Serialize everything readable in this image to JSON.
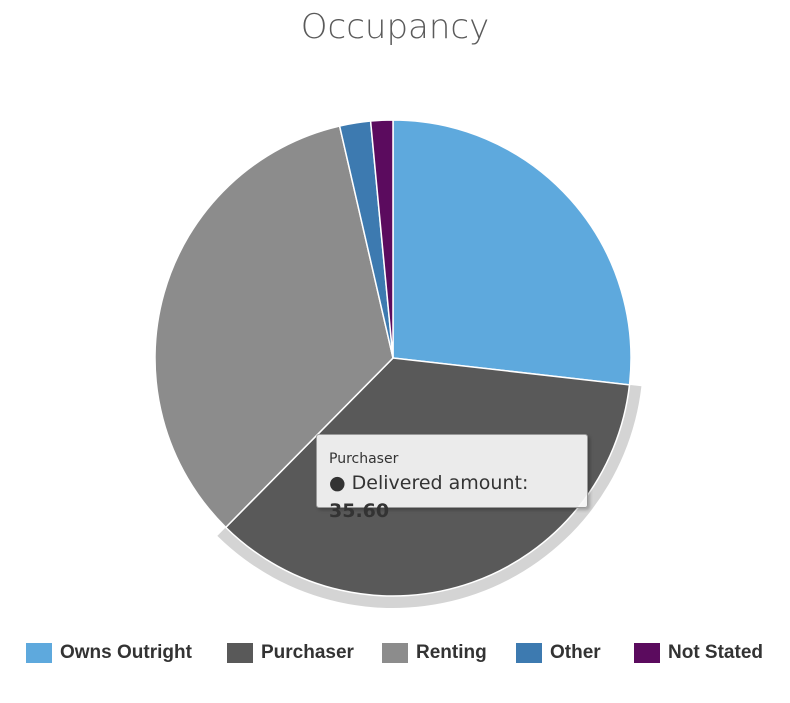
{
  "chart_data": {
    "type": "pie",
    "title": "Occupancy",
    "categories": [
      "Owns Outright",
      "Purchaser",
      "Renting",
      "Other",
      "Not Stated"
    ],
    "values": [
      26.8,
      35.6,
      34.0,
      2.1,
      1.5
    ],
    "colors": [
      "#5ea9dd",
      "#595959",
      "#8c8c8c",
      "#3d7ab0",
      "#5b0b5e"
    ],
    "highlighted": "Purchaser",
    "legend_position": "bottom"
  },
  "tooltip": {
    "category": "Purchaser",
    "series_label": "Delivered amount:",
    "value": "35.60",
    "bullet": "●"
  }
}
